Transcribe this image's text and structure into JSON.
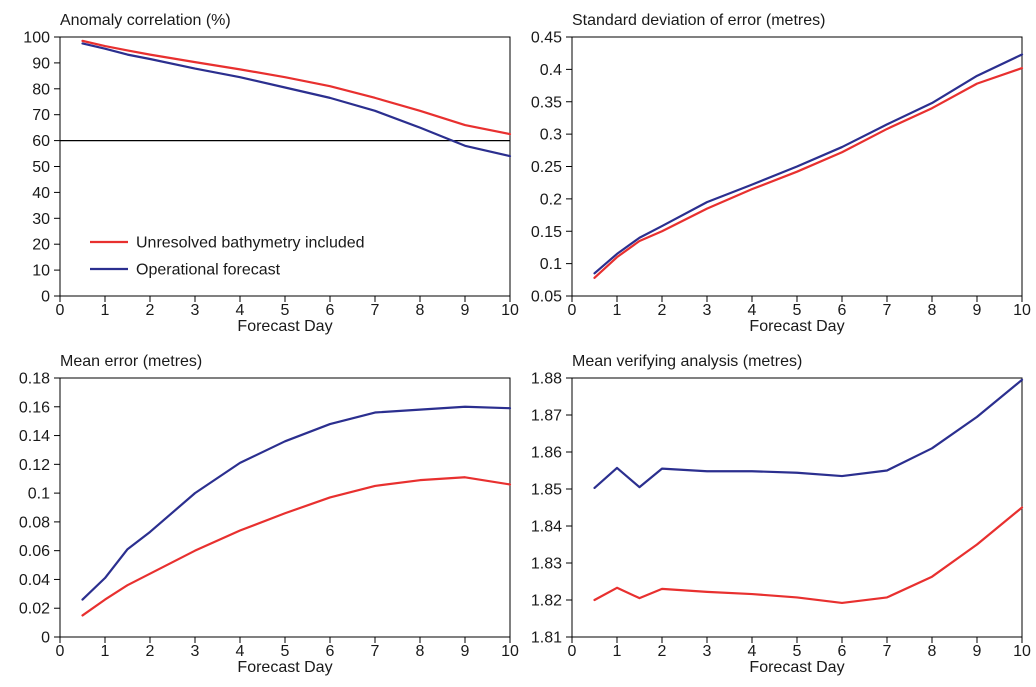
{
  "colors": {
    "red": "#e8302f",
    "blue": "#2b2f8f",
    "axis": "#000000"
  },
  "chart_data": [
    {
      "type": "line",
      "title": "Anomaly correlation (%)",
      "xlabel": "Forecast Day",
      "ylabel": "",
      "xlim": [
        0,
        10
      ],
      "ylim": [
        0,
        100
      ],
      "xticks": [
        0,
        1,
        2,
        3,
        4,
        5,
        6,
        7,
        8,
        9,
        10
      ],
      "yticks": [
        0,
        10,
        20,
        30,
        40,
        50,
        60,
        70,
        80,
        90,
        100
      ],
      "ytick_labels": [
        "0",
        "10",
        "20",
        "30",
        "40",
        "50",
        "60",
        "70",
        "80",
        "90",
        "100"
      ],
      "reference_line": 60,
      "legend": "lower-left",
      "grid": false,
      "series": [
        {
          "name": "Unresolved bathymetry included",
          "color": "#e8302f",
          "x": [
            0.5,
            1,
            1.5,
            2,
            3,
            4,
            5,
            6,
            7,
            8,
            9,
            10
          ],
          "y": [
            98.5,
            96.5,
            94.8,
            93.2,
            90.3,
            87.5,
            84.5,
            81,
            76.5,
            71.5,
            66,
            62.5
          ]
        },
        {
          "name": "Operational forecast",
          "color": "#2b2f8f",
          "x": [
            0.5,
            1,
            1.5,
            2,
            3,
            4,
            5,
            6,
            7,
            8,
            9,
            10
          ],
          "y": [
            97.5,
            95.5,
            93.2,
            91.5,
            87.8,
            84.5,
            80.5,
            76.5,
            71.5,
            65,
            58,
            54
          ]
        }
      ]
    },
    {
      "type": "line",
      "title": "Standard deviation of error (metres)",
      "xlabel": "Forecast Day",
      "ylabel": "",
      "xlim": [
        0,
        10
      ],
      "ylim": [
        0.05,
        0.45
      ],
      "xticks": [
        0,
        1,
        2,
        3,
        4,
        5,
        6,
        7,
        8,
        9,
        10
      ],
      "yticks": [
        0.05,
        0.1,
        0.15,
        0.2,
        0.25,
        0.3,
        0.35,
        0.4,
        0.45
      ],
      "ytick_labels": [
        "0.05",
        "0.1",
        "0.15",
        "0.2",
        "0.25",
        "0.3",
        "0.35",
        "0.4",
        "0.45"
      ],
      "grid": false,
      "series": [
        {
          "color": "#e8302f",
          "x": [
            0.5,
            1,
            1.5,
            2,
            3,
            4,
            5,
            6,
            7,
            8,
            9,
            10
          ],
          "y": [
            0.078,
            0.11,
            0.135,
            0.15,
            0.185,
            0.215,
            0.242,
            0.272,
            0.308,
            0.34,
            0.378,
            0.402
          ]
        },
        {
          "color": "#2b2f8f",
          "x": [
            0.5,
            1,
            1.5,
            2,
            3,
            4,
            5,
            6,
            7,
            8,
            9,
            10
          ],
          "y": [
            0.085,
            0.115,
            0.14,
            0.158,
            0.195,
            0.222,
            0.25,
            0.28,
            0.315,
            0.348,
            0.39,
            0.423
          ]
        }
      ]
    },
    {
      "type": "line",
      "title": "Mean error (metres)",
      "xlabel": "Forecast Day",
      "ylabel": "",
      "xlim": [
        0,
        10
      ],
      "ylim": [
        0,
        0.18
      ],
      "xticks": [
        0,
        1,
        2,
        3,
        4,
        5,
        6,
        7,
        8,
        9,
        10
      ],
      "yticks": [
        0,
        0.02,
        0.04,
        0.06,
        0.08,
        0.1,
        0.12,
        0.14,
        0.16,
        0.18
      ],
      "ytick_labels": [
        "0",
        "0.02",
        "0.04",
        "0.06",
        "0.08",
        "0.1",
        "0.12",
        "0.14",
        "0.16",
        "0.18"
      ],
      "grid": false,
      "series": [
        {
          "color": "#e8302f",
          "x": [
            0.5,
            1,
            1.5,
            2,
            3,
            4,
            5,
            6,
            7,
            8,
            9,
            10
          ],
          "y": [
            0.015,
            0.026,
            0.036,
            0.044,
            0.06,
            0.074,
            0.086,
            0.097,
            0.105,
            0.109,
            0.111,
            0.106
          ]
        },
        {
          "color": "#2b2f8f",
          "x": [
            0.5,
            1,
            1.5,
            2,
            3,
            4,
            5,
            6,
            7,
            8,
            9,
            10
          ],
          "y": [
            0.026,
            0.041,
            0.061,
            0.073,
            0.1,
            0.121,
            0.136,
            0.148,
            0.156,
            0.158,
            0.16,
            0.159
          ]
        }
      ]
    },
    {
      "type": "line",
      "title": "Mean verifying analysis (metres)",
      "xlabel": "Forecast Day",
      "ylabel": "",
      "xlim": [
        0,
        10
      ],
      "ylim": [
        1.81,
        1.88
      ],
      "xticks": [
        0,
        1,
        2,
        3,
        4,
        5,
        6,
        7,
        8,
        9,
        10
      ],
      "yticks": [
        1.81,
        1.82,
        1.83,
        1.84,
        1.85,
        1.86,
        1.87,
        1.88
      ],
      "ytick_labels": [
        "1.81",
        "1.82",
        "1.83",
        "1.84",
        "1.85",
        "1.86",
        "1.87",
        "1.88"
      ],
      "grid": false,
      "series": [
        {
          "color": "#e8302f",
          "x": [
            0.5,
            1,
            1.5,
            2,
            3,
            4,
            5,
            6,
            7,
            8,
            9,
            10
          ],
          "y": [
            1.82,
            1.8233,
            1.8205,
            1.823,
            1.8222,
            1.8216,
            1.8207,
            1.8192,
            1.8207,
            1.8263,
            1.835,
            1.845
          ]
        },
        {
          "color": "#2b2f8f",
          "x": [
            0.5,
            1,
            1.5,
            2,
            3,
            4,
            5,
            6,
            7,
            8,
            9,
            10
          ],
          "y": [
            1.8503,
            1.8557,
            1.8505,
            1.8555,
            1.8548,
            1.8548,
            1.8544,
            1.8535,
            1.855,
            1.861,
            1.8695,
            1.8795
          ]
        }
      ]
    }
  ]
}
